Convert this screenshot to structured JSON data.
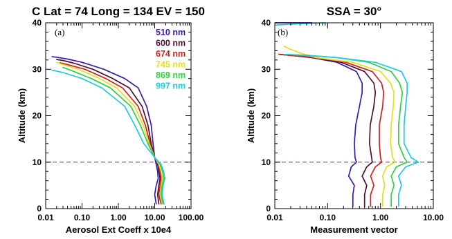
{
  "chart_data": [
    {
      "type": "line",
      "title": "C Lat = 74 Long = 134 EV = 150",
      "panel_label": "(a)",
      "xlabel": "Aerosol Ext Coeff x 10e4",
      "ylabel": "Altitude (km)",
      "xscale": "log",
      "xlim": [
        0.01,
        100
      ],
      "ylim": [
        0,
        40
      ],
      "xticks": [
        0.01,
        0.1,
        1,
        10,
        100
      ],
      "xtick_labels": [
        "0.01",
        "0.10",
        "1.00",
        "10.00",
        "100.00"
      ],
      "yticks": [
        0,
        10,
        20,
        30,
        40
      ],
      "ytick_labels": [
        "0",
        "10",
        "20",
        "30",
        "40"
      ],
      "reference_line_y": 10,
      "legend_position": "top-right",
      "series": [
        {
          "name": "510 nm",
          "color": "#3a1aa8",
          "x": [
            11,
            10,
            11,
            12.5,
            12,
            11,
            10,
            9,
            8,
            6,
            3.5,
            1.5,
            0.4,
            0.1,
            0.04,
            0.02,
            0.015
          ],
          "y": [
            1,
            3,
            5,
            6.5,
            8,
            9.5,
            11,
            14,
            18,
            22,
            26,
            28,
            30,
            31.5,
            32.2,
            32.6,
            32.7
          ]
        },
        {
          "name": "600 nm",
          "color": "#4a1030",
          "x": [
            13,
            12,
            13,
            14,
            13,
            12,
            10,
            8,
            6.5,
            4.5,
            2,
            0.7,
            0.2,
            0.06,
            0.03,
            0.02
          ],
          "y": [
            1,
            3,
            5,
            6.5,
            8,
            9.5,
            11,
            14,
            18,
            22,
            26,
            28,
            30,
            31.3,
            31.9,
            32.1
          ]
        },
        {
          "name": "674 nm",
          "color": "#d22020",
          "x": [
            15,
            13,
            14,
            15,
            14,
            12.5,
            10,
            7.5,
            5.5,
            3.5,
            1.3,
            0.45,
            0.12,
            0.04,
            0.025
          ],
          "y": [
            1,
            3,
            5,
            6.5,
            8,
            9.5,
            11,
            14,
            18,
            22,
            26,
            28,
            30,
            31,
            31.4
          ]
        },
        {
          "name": "745 nm",
          "color": "#e0e020",
          "x": [
            16,
            14,
            15,
            16.5,
            15,
            13,
            10,
            7,
            4.8,
            2.8,
            0.9,
            0.3,
            0.08,
            0.03,
            0.02
          ],
          "y": [
            1,
            3,
            5,
            6.5,
            8,
            9.5,
            11,
            14,
            18,
            22,
            26,
            28,
            30,
            31,
            31.5
          ]
        },
        {
          "name": "869 nm",
          "color": "#30d040",
          "x": [
            17,
            15,
            16,
            18,
            16.5,
            14,
            10,
            6.5,
            4,
            2.2,
            0.6,
            0.18,
            0.06,
            0.03
          ],
          "y": [
            1,
            3,
            5,
            6.5,
            8,
            9.5,
            11,
            14,
            18,
            22,
            26,
            28,
            29.5,
            30.4
          ]
        },
        {
          "name": "997 nm",
          "color": "#22c8e0",
          "x": [
            18,
            16,
            17,
            19,
            17.5,
            15,
            10,
            5,
            2.8,
            1.5,
            0.35,
            0.1,
            0.03,
            0.015
          ],
          "y": [
            1,
            3,
            5,
            6.5,
            8,
            9.5,
            11,
            14,
            18,
            22,
            26,
            28,
            29.3,
            29.8
          ]
        }
      ]
    },
    {
      "type": "line",
      "title": "SSA = 30°",
      "panel_label": "(b)",
      "xlabel": "Measurement vector",
      "ylabel": "Altitude (km)",
      "xscale": "log",
      "xlim": [
        0.01,
        10
      ],
      "ylim": [
        0,
        40
      ],
      "xticks": [
        0.01,
        0.1,
        1,
        10
      ],
      "xtick_labels": [
        "0.01",
        "0.10",
        "1.00",
        "10.00"
      ],
      "yticks": [
        0,
        10,
        20,
        30,
        40
      ],
      "ytick_labels": [
        "0",
        "10",
        "20",
        "30",
        "40"
      ],
      "reference_line_y": 10,
      "series": [
        {
          "name": "510 nm",
          "color": "#3a1aa8",
          "x": [
            0.3,
            0.3,
            0.32,
            0.25,
            0.28,
            0.35,
            0.33,
            0.32,
            0.34,
            0.4,
            0.45,
            0.45,
            0.35,
            0.15,
            0.05,
            0.02,
            0.012
          ],
          "y": [
            0.5,
            3,
            5,
            7,
            9,
            10,
            11,
            14,
            18,
            22,
            25,
            27,
            29.5,
            31.5,
            32.5,
            33,
            33.2
          ]
        },
        {
          "name": "600 nm",
          "color": "#4a1030",
          "x": [
            0.5,
            0.5,
            0.55,
            0.45,
            0.55,
            0.7,
            0.68,
            0.62,
            0.64,
            0.75,
            0.8,
            0.75,
            0.5,
            0.18,
            0.05,
            0.02,
            0.012
          ],
          "y": [
            0.5,
            3,
            5,
            7,
            9,
            10,
            11,
            14,
            18,
            22,
            25,
            27,
            29.5,
            31.5,
            32.5,
            33,
            33.2
          ]
        },
        {
          "name": "674 nm",
          "color": "#d22020",
          "x": [
            0.65,
            0.65,
            0.75,
            0.65,
            0.8,
            1.05,
            1.0,
            0.95,
            0.95,
            1.1,
            1.15,
            1.05,
            0.7,
            0.22,
            0.06,
            0.02,
            0.012
          ],
          "y": [
            0.5,
            3,
            5,
            7,
            9,
            10,
            11,
            14,
            18,
            22,
            25,
            27,
            29.5,
            31.5,
            32.5,
            33,
            33.2
          ]
        },
        {
          "name": "745 nm",
          "color": "#e0e020",
          "x": [
            1.1,
            1.1,
            1.2,
            1.1,
            1.3,
            1.9,
            1.7,
            1.55,
            1.6,
            1.75,
            1.8,
            1.55,
            1.0,
            0.3,
            0.06,
            0.03,
            0.018,
            0.015
          ],
          "y": [
            0.5,
            3,
            5,
            7,
            9,
            10,
            11,
            14,
            18,
            22,
            25,
            27,
            29.5,
            31.5,
            32.5,
            33.5,
            34.5,
            35
          ]
        },
        {
          "name": "869 nm",
          "color": "#30d040",
          "x": [
            1.6,
            1.6,
            1.8,
            1.6,
            2.0,
            3.2,
            2.8,
            2.2,
            2.2,
            2.4,
            2.6,
            2.3,
            1.6,
            0.6,
            0.15,
            0.04,
            0.015
          ],
          "y": [
            0.5,
            3,
            5,
            7,
            9,
            10,
            11,
            14,
            18,
            22,
            25,
            27,
            29.5,
            31.5,
            32.5,
            33,
            33.2
          ]
        },
        {
          "name": "997 nm",
          "color": "#22c8e0",
          "x": [
            2.2,
            2.2,
            2.5,
            2.2,
            3.0,
            5.2,
            3.8,
            2.8,
            2.8,
            3.0,
            3.2,
            3.2,
            2.5,
            0.8,
            0.15,
            0.04,
            0.015
          ],
          "y": [
            0.5,
            3,
            5,
            7,
            9,
            10,
            11,
            14,
            18,
            22,
            25,
            27,
            29.5,
            31.5,
            32.5,
            33,
            33.2
          ]
        },
        {
          "name": "",
          "color": "#22c8e0",
          "x": [
            0.01,
            0.03,
            0.09
          ],
          "y": [
            39.5,
            39.8,
            40
          ]
        },
        {
          "name": "",
          "color": "#3a1aa8",
          "x": [
            0.01,
            0.05
          ],
          "y": [
            40,
            40
          ]
        }
      ]
    }
  ]
}
